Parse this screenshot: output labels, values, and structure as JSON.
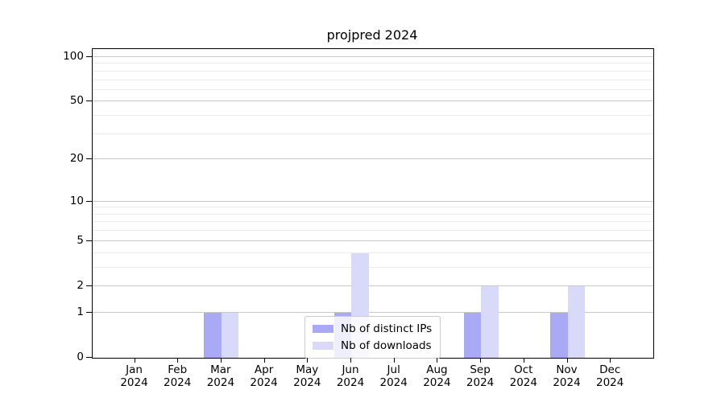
{
  "title": "projpred 2024",
  "chart_data": {
    "type": "bar",
    "title": "projpred 2024",
    "categories": [
      {
        "month": "Jan",
        "year": "2024"
      },
      {
        "month": "Feb",
        "year": "2024"
      },
      {
        "month": "Mar",
        "year": "2024"
      },
      {
        "month": "Apr",
        "year": "2024"
      },
      {
        "month": "May",
        "year": "2024"
      },
      {
        "month": "Jun",
        "year": "2024"
      },
      {
        "month": "Jul",
        "year": "2024"
      },
      {
        "month": "Aug",
        "year": "2024"
      },
      {
        "month": "Sep",
        "year": "2024"
      },
      {
        "month": "Oct",
        "year": "2024"
      },
      {
        "month": "Nov",
        "year": "2024"
      },
      {
        "month": "Dec",
        "year": "2024"
      }
    ],
    "series": [
      {
        "name": "Nb of distinct IPs",
        "color": "#a9a9f6",
        "values": [
          0,
          0,
          1,
          0,
          0,
          1,
          0,
          0,
          1,
          0,
          1,
          0
        ]
      },
      {
        "name": "Nb of downloads",
        "color": "#d9d9f9",
        "values": [
          0,
          0,
          1,
          0,
          0,
          4,
          0,
          0,
          2,
          0,
          2,
          0
        ]
      }
    ],
    "y_axis": {
      "scale": "log1p",
      "ticks_major": [
        0,
        1,
        2,
        5,
        10,
        20,
        50,
        100
      ],
      "ticks_minor": [
        3,
        4,
        6,
        7,
        8,
        9,
        30,
        40,
        60,
        70,
        80,
        90
      ],
      "range": [
        0,
        100
      ]
    },
    "legend_position": "lower center",
    "grid": "on",
    "colors": {
      "bar_distinct_ips": "#a9a9f6",
      "bar_downloads": "#d9d9f9",
      "grid_major": "#c9c9c9",
      "grid_minor": "#ececec",
      "axis": "#000000"
    }
  }
}
